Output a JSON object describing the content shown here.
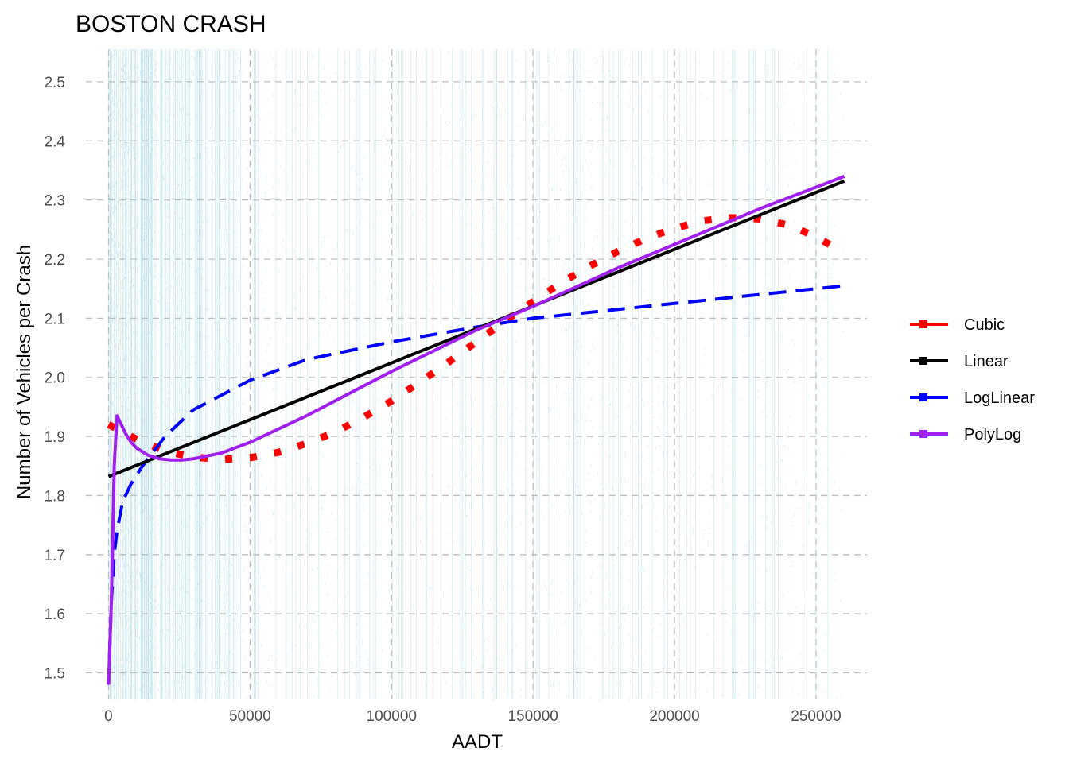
{
  "chart_data": {
    "type": "line",
    "title": "BOSTON CRASH",
    "xlabel": "AADT",
    "ylabel": "Number of Vehicles per Crash",
    "xlim": [
      -8000,
      268000
    ],
    "ylim": [
      1.455,
      2.555
    ],
    "x_ticks": [
      0,
      50000,
      100000,
      150000,
      200000,
      250000
    ],
    "x_tick_labels": [
      "0",
      "50000",
      "100000",
      "150000",
      "200000",
      "250000"
    ],
    "y_ticks": [
      1.5,
      1.6,
      1.7,
      1.8,
      1.9,
      2.0,
      2.1,
      2.2,
      2.3,
      2.4,
      2.5
    ],
    "y_tick_labels": [
      "1.5",
      "1.6",
      "1.7",
      "1.8",
      "1.9",
      "2.0",
      "2.1",
      "2.2",
      "2.3",
      "2.4",
      "2.5"
    ],
    "grid": true,
    "legend_position": "right",
    "background_points": {
      "color": "#9fd3e0",
      "description_free": true
    },
    "series": [
      {
        "name": "Cubic",
        "color": "#ff0000",
        "style": "dotted",
        "x": [
          0,
          10000,
          20000,
          30000,
          40000,
          50000,
          60000,
          70000,
          80000,
          90000,
          100000,
          110000,
          120000,
          130000,
          140000,
          150000,
          160000,
          170000,
          180000,
          190000,
          200000,
          210000,
          220000,
          230000,
          240000,
          250000,
          260000
        ],
        "y": [
          1.92,
          1.895,
          1.875,
          1.865,
          1.861,
          1.864,
          1.873,
          1.888,
          1.907,
          1.932,
          1.96,
          1.992,
          2.025,
          2.06,
          2.095,
          2.128,
          2.16,
          2.188,
          2.213,
          2.235,
          2.252,
          2.265,
          2.27,
          2.268,
          2.258,
          2.238,
          2.21
        ]
      },
      {
        "name": "Linear",
        "color": "#000000",
        "style": "solid",
        "x": [
          0,
          260000
        ],
        "y": [
          1.832,
          2.332
        ]
      },
      {
        "name": "LogLinear",
        "color": "#0000ff",
        "style": "dashed",
        "x": [
          0,
          1000,
          2000,
          3000,
          5000,
          8000,
          12000,
          20000,
          30000,
          50000,
          70000,
          100000,
          130000,
          150000,
          180000,
          200000,
          230000,
          260000
        ],
        "y": [
          1.48,
          1.62,
          1.7,
          1.74,
          1.79,
          1.82,
          1.85,
          1.9,
          1.945,
          1.995,
          2.03,
          2.06,
          2.085,
          2.1,
          2.115,
          2.125,
          2.14,
          2.155
        ]
      },
      {
        "name": "PolyLog",
        "color": "#a020f0",
        "style": "solid",
        "x": [
          0,
          1000,
          2000,
          3000,
          4000,
          6000,
          8000,
          10000,
          14000,
          18000,
          22000,
          26000,
          30000,
          40000,
          50000,
          70000,
          100000,
          130000,
          150000,
          180000,
          200000,
          230000,
          260000
        ],
        "y": [
          1.48,
          1.62,
          1.85,
          1.935,
          1.925,
          1.905,
          1.89,
          1.88,
          1.868,
          1.862,
          1.86,
          1.86,
          1.862,
          1.872,
          1.89,
          1.935,
          2.01,
          2.08,
          2.12,
          2.185,
          2.225,
          2.285,
          2.34
        ]
      }
    ]
  }
}
